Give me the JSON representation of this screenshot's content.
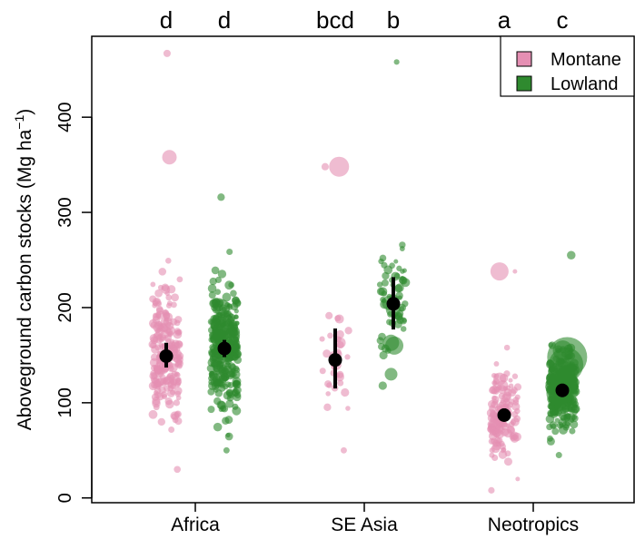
{
  "chart_data": {
    "type": "scatter",
    "ylabel": "Aboveground carbon stocks (Mg ha",
    "ylabel_superscript": "−1",
    "ylabel_close": ")",
    "ylim": [
      -5,
      485
    ],
    "yticks": [
      0,
      100,
      200,
      300,
      400
    ],
    "categories": [
      "Africa",
      "SE Asia",
      "Neotropics"
    ],
    "legend": {
      "placement": "top-right",
      "items": [
        "Montane",
        "Lowland"
      ]
    },
    "significance_letters": [
      {
        "category": "Africa",
        "series": "Montane",
        "letter": "d"
      },
      {
        "category": "Africa",
        "series": "Lowland",
        "letter": "d"
      },
      {
        "category": "SE Asia",
        "series": "Montane",
        "letter": "bcd"
      },
      {
        "category": "SE Asia",
        "series": "Lowland",
        "letter": "b"
      },
      {
        "category": "Neotropics",
        "series": "Montane",
        "letter": "a"
      },
      {
        "category": "Neotropics",
        "series": "Lowland",
        "letter": "c"
      }
    ],
    "colors": {
      "Montane": "#e58fb3",
      "Lowland": "#2f8a2f",
      "mean": "#000000"
    },
    "series": [
      {
        "name": "Montane",
        "groups": [
          {
            "category": "Africa",
            "mean": 149,
            "ci": [
              137,
              163
            ],
            "n": 230,
            "range": [
              30,
              467
            ],
            "large": [
              [
                358,
                8
              ],
              [
                185,
                5
              ],
              [
                190,
                5
              ]
            ]
          },
          {
            "category": "SE Asia",
            "mean": 145,
            "ci": [
              115,
              178
            ],
            "n": 30,
            "range": [
              50,
              348
            ],
            "large": [
              [
                348,
                11
              ],
              [
                163,
                6
              ],
              [
                140,
                6
              ],
              [
                188,
                5
              ]
            ]
          },
          {
            "category": "Neotropics",
            "mean": 87,
            "ci": [
              81,
              94
            ],
            "n": 150,
            "range": [
              8,
              238
            ],
            "large": [
              [
                238,
                10
              ],
              [
                125,
                7
              ],
              [
                118,
                6
              ]
            ]
          }
        ]
      },
      {
        "name": "Lowland",
        "groups": [
          {
            "category": "Africa",
            "mean": 157,
            "ci": [
              148,
              166
            ],
            "n": 330,
            "range": [
              50,
              316
            ],
            "large": [
              [
                183,
                13
              ],
              [
                176,
                11
              ],
              [
                168,
                10
              ],
              [
                150,
                9
              ],
              [
                200,
                9
              ],
              [
                125,
                8
              ]
            ]
          },
          {
            "category": "SE Asia",
            "mean": 204,
            "ci": [
              177,
              232
            ],
            "n": 60,
            "range": [
              118,
              458
            ],
            "large": [
              [
                160,
                10
              ],
              [
                163,
                9
              ],
              [
                205,
                8
              ],
              [
                198,
                8
              ],
              [
                130,
                7
              ]
            ]
          },
          {
            "category": "Neotropics",
            "mean": 113,
            "ci": [
              106,
              120
            ],
            "n": 320,
            "range": [
              45,
              255
            ],
            "large": [
              [
                148,
                22
              ],
              [
                140,
                19
              ],
              [
                130,
                15
              ],
              [
                110,
                14
              ],
              [
                120,
                12
              ],
              [
                155,
                11
              ]
            ]
          }
        ]
      }
    ]
  }
}
